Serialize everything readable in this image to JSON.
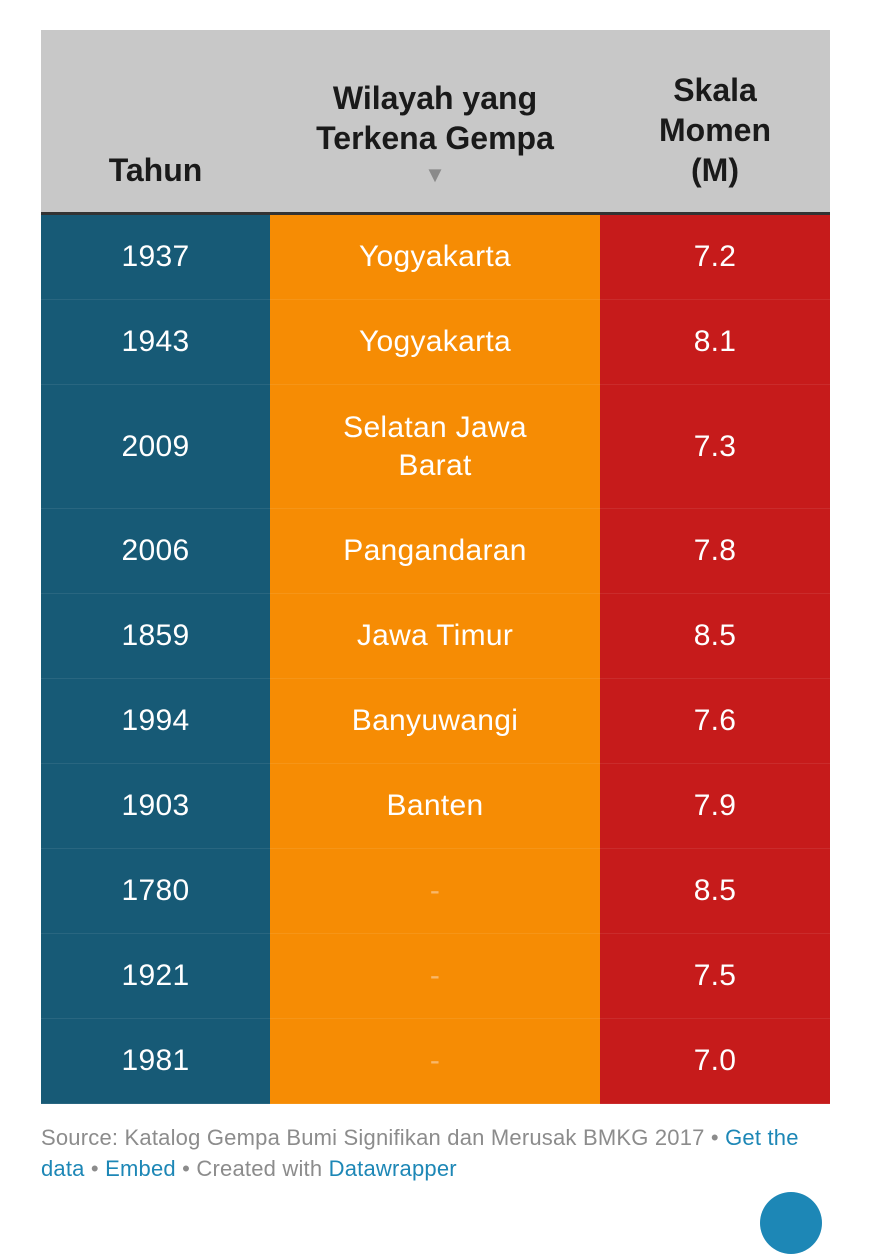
{
  "chart_data": {
    "type": "table",
    "columns": [
      "Tahun",
      "Wilayah yang Terkena Gempa",
      "Skala Momen (M)"
    ],
    "header": {
      "year_label": "Tahun",
      "region_label_line1": "Wilayah yang",
      "region_label_line2": "Terkena Gempa",
      "sort_indicator": "▼",
      "magnitude_label_line1": "Skala",
      "magnitude_label_line2": "Momen",
      "magnitude_label_line3": "(M)"
    },
    "rows": [
      {
        "year": "1937",
        "region": "Yogyakarta",
        "magnitude": "7.2"
      },
      {
        "year": "1943",
        "region": "Yogyakarta",
        "magnitude": "8.1"
      },
      {
        "year": "2009",
        "region_line1": "Selatan Jawa",
        "region_line2": "Barat",
        "magnitude": "7.3"
      },
      {
        "year": "2006",
        "region": "Pangandaran",
        "magnitude": "7.8"
      },
      {
        "year": "1859",
        "region": "Jawa Timur",
        "magnitude": "8.5"
      },
      {
        "year": "1994",
        "region": "Banyuwangi",
        "magnitude": "7.6"
      },
      {
        "year": "1903",
        "region": "Banten",
        "magnitude": "7.9"
      },
      {
        "year": "1780",
        "region": "-",
        "magnitude": "8.5"
      },
      {
        "year": "1921",
        "region": "-",
        "magnitude": "7.5"
      },
      {
        "year": "1981",
        "region": "-",
        "magnitude": "7.0"
      }
    ],
    "colors": {
      "year_column": "#175a76",
      "region_column": "#f68c04",
      "magnitude_column": "#c61b1b",
      "header_background": "#c8c8c8"
    }
  },
  "footer": {
    "source_text": "Source: Katalog Gempa Bumi Signifikan dan Merusak BMKG 2017",
    "sep1": " • ",
    "get_data": "Get the data",
    "sep2": " • ",
    "embed": "Embed",
    "sep3": "  • Created with ",
    "datawrapper": "Datawrapper"
  }
}
